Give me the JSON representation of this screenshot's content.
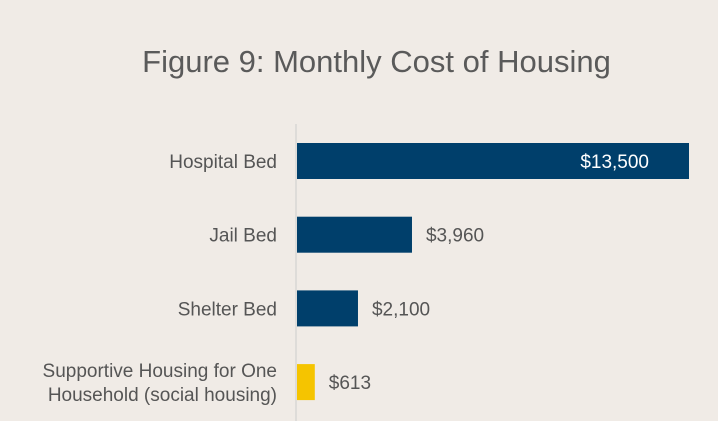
{
  "chart_data": {
    "type": "bar",
    "orientation": "horizontal",
    "title": "Figure 9: Monthly Cost of Housing",
    "categories": [
      [
        "Hospital Bed"
      ],
      [
        "Jail Bed"
      ],
      [
        "Shelter Bed"
      ],
      [
        "Supportive Housing for One",
        "Household (social housing)"
      ]
    ],
    "values": [
      13500,
      3960,
      2100,
      613
    ],
    "data_labels": [
      "$13,500",
      "$3,960",
      "$2,100",
      "$613"
    ],
    "bar_colors": [
      "#003f6b",
      "#003f6b",
      "#003f6b",
      "#f5c400"
    ],
    "xlim": [
      0,
      13500
    ],
    "grid": false,
    "legend": "none"
  },
  "colors": {
    "background": "#f0ebe6",
    "axis": "#cccccc",
    "label_text": "#555555",
    "inside_label_text": "#ffffff"
  }
}
